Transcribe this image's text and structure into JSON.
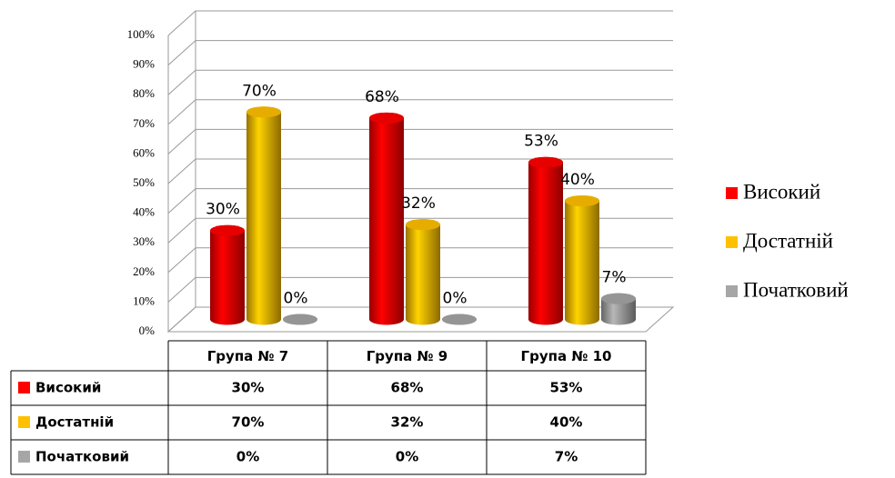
{
  "chart_data": {
    "type": "bar3d",
    "categories": [
      "Група № 7",
      "Група № 9",
      "Група № 10"
    ],
    "series": [
      {
        "name": "Високий",
        "color": "#ff0000",
        "values": [
          30,
          68,
          53
        ],
        "value_labels": [
          "30%",
          "68%",
          "53%"
        ]
      },
      {
        "name": "Достатній",
        "color": "#ffc000",
        "values": [
          70,
          32,
          40
        ],
        "value_labels": [
          "70%",
          "32%",
          "40%"
        ]
      },
      {
        "name": "Початковий",
        "color": "#a6a6a6",
        "values": [
          0,
          0,
          7
        ],
        "value_labels": [
          "0%",
          "0%",
          "7%"
        ]
      }
    ],
    "ylim": [
      0,
      100
    ],
    "yticks": [
      {
        "value": 0,
        "label": "0%"
      },
      {
        "value": 10,
        "label": "10%"
      },
      {
        "value": 20,
        "label": "20%"
      },
      {
        "value": 30,
        "label": "30%"
      },
      {
        "value": 40,
        "label": "40%"
      },
      {
        "value": 50,
        "label": "50%"
      },
      {
        "value": 60,
        "label": "60%"
      },
      {
        "value": 70,
        "label": "70%"
      },
      {
        "value": 80,
        "label": "80%"
      },
      {
        "value": 90,
        "label": "90%"
      },
      {
        "value": 100,
        "label": "100%"
      }
    ],
    "grid": true,
    "legend": "right",
    "data_table": true
  }
}
